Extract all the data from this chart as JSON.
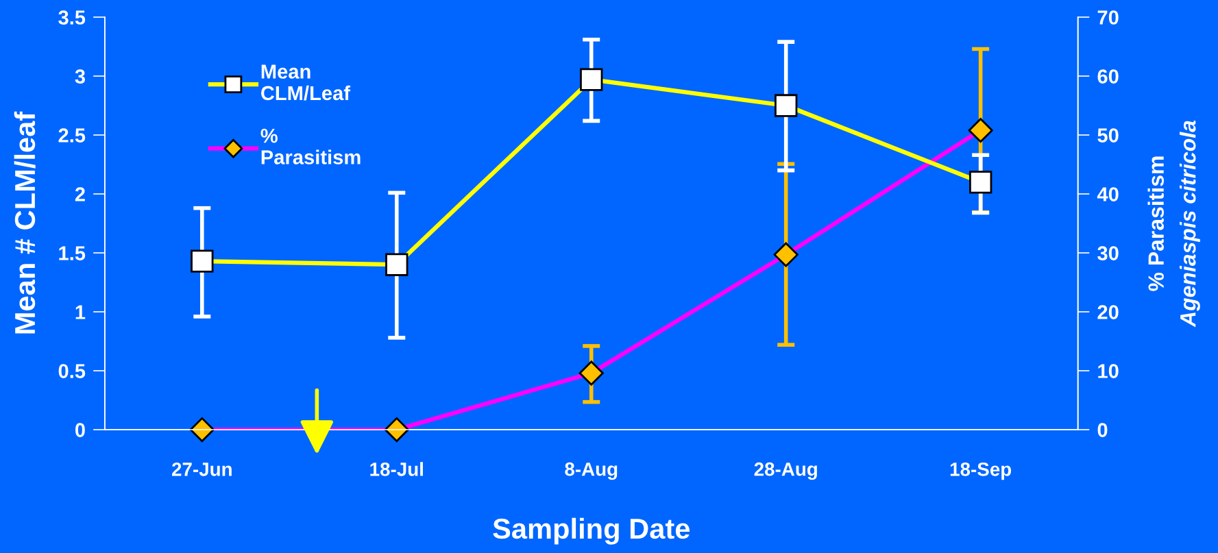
{
  "chart_data": {
    "type": "line",
    "xlabel": "Sampling Date",
    "ylabel": "Mean # CLM/leaf",
    "y2label": "% Parasitism\nAgeniaspis citricola",
    "categories": [
      "27-Jun",
      "18-Jul",
      "8-Aug",
      "28-Aug",
      "18-Sep"
    ],
    "series": [
      {
        "name": "Mean\nCLM/Leaf",
        "color": "#ffff00",
        "colors": [
          "#ffffff",
          "#ffffff",
          "#ffffff",
          "#ffffff",
          "#ffffff"
        ],
        "marker": "square",
        "values": [
          1.43,
          1.4,
          2.97,
          2.75,
          2.1
        ],
        "errors": [
          [
            0.96,
            1.88
          ],
          [
            0.78,
            2.01
          ],
          [
            2.62,
            3.31
          ],
          [
            2.2,
            3.29
          ],
          [
            1.84,
            2.33
          ]
        ]
      },
      {
        "name": "%\nParasitism",
        "color": "#ff00ff",
        "colors": [
          "#ffc000",
          "#ffc000",
          "#ffc000",
          "#ffc000",
          "#ffc000"
        ],
        "marker": "diamond",
        "axis": "y2",
        "values": [
          0,
          0,
          9.6,
          29.7,
          50.8
        ],
        "errors": [
          null,
          null,
          [
            4.7,
            14.2
          ],
          [
            14.4,
            45.1
          ],
          [
            36.9,
            64.6
          ]
        ]
      }
    ],
    "ylim": [
      0,
      3.5
    ],
    "yticks": [
      0,
      0.5,
      1,
      1.5,
      2,
      2.5,
      3,
      3.5
    ],
    "y2lim": [
      0,
      70
    ],
    "y2ticks": [
      0,
      10,
      20,
      30,
      40,
      50,
      60,
      70
    ],
    "grid": false,
    "legend": "top left",
    "line_style": "solid"
  }
}
